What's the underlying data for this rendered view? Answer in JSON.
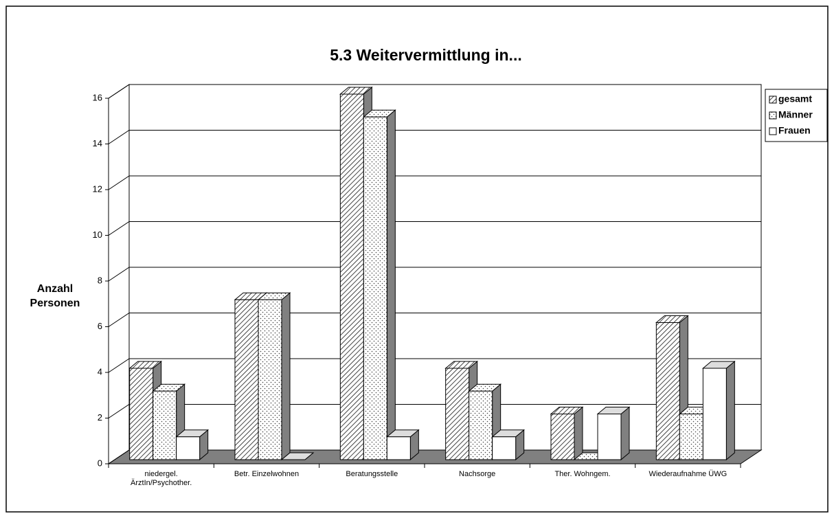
{
  "chart_data": {
    "type": "bar3d",
    "title": "5.3 Weitervermittlung in...",
    "y_label": "Anzahl Personen",
    "categories": [
      "niedergel. ÄrztIn/Psychother.",
      "Betr. Einzelwohnen",
      "Beratungsstelle",
      "Nachsorge",
      "Ther. Wohngem.",
      "Wiederaufnahme ÜWG"
    ],
    "series": [
      {
        "name": "gesamt",
        "color": "#808080",
        "pattern": "hatch",
        "values": [
          4,
          7,
          16,
          4,
          2,
          6
        ]
      },
      {
        "name": "Männer",
        "color": "#808080",
        "pattern": "dots",
        "values": [
          3,
          7,
          15,
          3,
          0,
          2
        ]
      },
      {
        "name": "Frauen",
        "color": "#808080",
        "pattern": "none",
        "values": [
          1,
          0,
          1,
          1,
          2,
          4
        ]
      }
    ],
    "ylim": [
      0,
      16
    ],
    "yticks": [
      0,
      2,
      4,
      6,
      8,
      10,
      12,
      14,
      16
    ],
    "grid": true,
    "legend": "right"
  }
}
